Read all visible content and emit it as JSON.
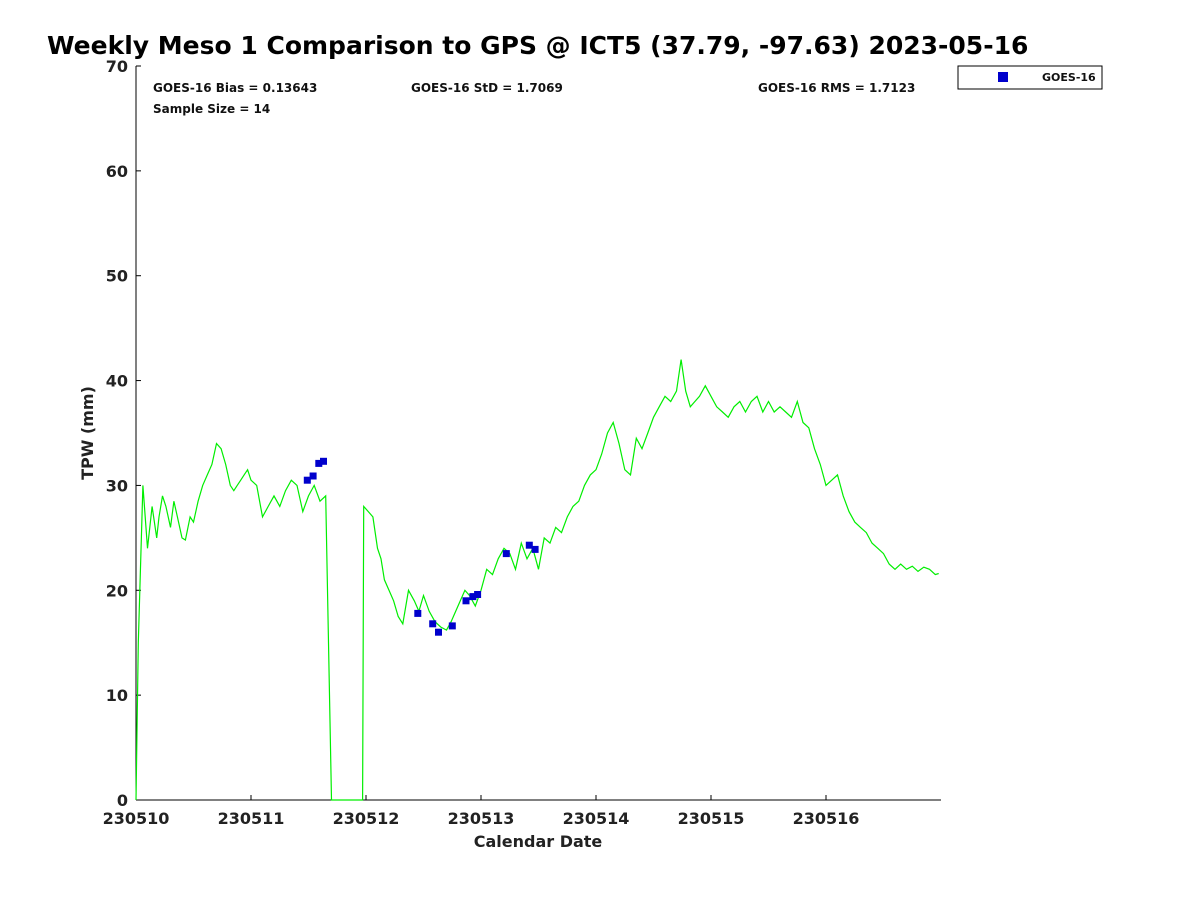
{
  "chart_data": {
    "type": "scatter",
    "title": "Weekly Meso 1 Comparison to GPS @ ICT5 (37.79, -97.63) 2023-05-16",
    "xlabel": "Calendar Date",
    "ylabel": "TPW (mm)",
    "xlim": [
      230510,
      230517
    ],
    "ylim": [
      0,
      70
    ],
    "x_ticks": [
      "230510",
      "230511",
      "230512",
      "230513",
      "230514",
      "230515",
      "230516"
    ],
    "y_ticks": [
      0,
      10,
      20,
      30,
      40,
      50,
      60,
      70
    ],
    "grid": false,
    "legend_position": "top-right-outside",
    "stats": {
      "bias": "GOES-16 Bias = 0.13643",
      "std": "GOES-16 StD = 1.7069",
      "rms": "GOES-16 RMS = 1.7123",
      "sample": "Sample Size = 14"
    },
    "series": [
      {
        "name": "GOES-16",
        "marker": "square",
        "color": "#0000cc",
        "x": [
          230511.49,
          230511.54,
          230511.59,
          230511.63,
          230512.45,
          230512.58,
          230512.63,
          230512.75,
          230512.87,
          230512.93,
          230512.97,
          230513.22,
          230513.42,
          230513.47
        ],
        "y": [
          30.5,
          30.9,
          32.1,
          32.3,
          17.8,
          16.8,
          16.0,
          16.6,
          19.0,
          19.4,
          19.6,
          23.5,
          24.3,
          23.9
        ]
      },
      {
        "color": "#00ee00",
        "marker": "line",
        "x": [
          230510.0,
          230510.02,
          230510.06,
          230510.1,
          230510.14,
          230510.18,
          230510.2,
          230510.23,
          230510.26,
          230510.3,
          230510.33,
          230510.36,
          230510.4,
          230510.43,
          230510.47,
          230510.5,
          230510.54,
          230510.58,
          230510.62,
          230510.66,
          230510.7,
          230510.74,
          230510.78,
          230510.82,
          230510.85,
          230510.88,
          230510.91,
          230510.94,
          230510.97,
          230511.0,
          230511.05,
          230511.1,
          230511.15,
          230511.2,
          230511.25,
          230511.3,
          230511.35,
          230511.4,
          230511.45,
          230511.5,
          230511.55,
          230511.6,
          230511.65,
          230511.7,
          230511.75,
          230511.8,
          230511.83,
          230511.86,
          230511.88,
          230511.93,
          230511.97,
          230511.98,
          230512.02,
          230512.06,
          230512.1,
          230512.13,
          230512.16,
          230512.2,
          230512.24,
          230512.28,
          230512.32,
          230512.37,
          230512.42,
          230512.46,
          230512.5,
          230512.55,
          230512.6,
          230512.65,
          230512.7,
          230512.74,
          230512.78,
          230512.82,
          230512.86,
          230512.9,
          230512.95,
          230513.0,
          230513.05,
          230513.1,
          230513.15,
          230513.2,
          230513.25,
          230513.3,
          230513.35,
          230513.4,
          230513.45,
          230513.5,
          230513.55,
          230513.6,
          230513.65,
          230513.7,
          230513.75,
          230513.8,
          230513.85,
          230513.9,
          230513.95,
          230514.0,
          230514.05,
          230514.1,
          230514.15,
          230514.2,
          230514.25,
          230514.3,
          230514.35,
          230514.4,
          230514.45,
          230514.5,
          230514.55,
          230514.6,
          230514.65,
          230514.7,
          230514.74,
          230514.78,
          230514.82,
          230514.86,
          230514.9,
          230514.95,
          230515.0,
          230515.05,
          230515.1,
          230515.15,
          230515.2,
          230515.25,
          230515.3,
          230515.35,
          230515.4,
          230515.45,
          230515.5,
          230515.55,
          230515.6,
          230515.65,
          230515.7,
          230515.75,
          230515.8,
          230515.85,
          230515.9,
          230515.95,
          230516.0,
          230516.05,
          230516.1,
          230516.15,
          230516.2,
          230516.25,
          230516.3,
          230516.35,
          230516.4,
          230516.45,
          230516.5,
          230516.55,
          230516.6,
          230516.65,
          230516.7,
          230516.75,
          230516.8,
          230516.85,
          230516.9,
          230516.95,
          230516.98
        ],
        "y": [
          0.0,
          15.0,
          30.0,
          24.0,
          28.0,
          25.0,
          27.0,
          29.0,
          28.0,
          26.0,
          28.5,
          27.0,
          25.0,
          24.8,
          27.0,
          26.5,
          28.5,
          30.0,
          31.0,
          32.0,
          34.0,
          33.5,
          32.0,
          30.0,
          29.5,
          30.0,
          30.5,
          31.0,
          31.5,
          30.5,
          30.0,
          27.0,
          28.0,
          29.0,
          28.0,
          29.5,
          30.5,
          30.0,
          27.5,
          29.0,
          30.0,
          28.5,
          29.0,
          0.0,
          0.0,
          0.0,
          0.0,
          0.0,
          0.0,
          0.0,
          0.0,
          28.0,
          27.5,
          27.0,
          24.0,
          23.0,
          21.0,
          20.0,
          19.0,
          17.5,
          16.8,
          20.0,
          19.0,
          18.0,
          19.5,
          18.0,
          17.0,
          16.5,
          16.2,
          17.0,
          18.0,
          19.0,
          20.0,
          19.5,
          18.5,
          20.0,
          22.0,
          21.5,
          23.0,
          24.0,
          23.5,
          22.0,
          24.5,
          23.0,
          24.0,
          22.0,
          25.0,
          24.5,
          26.0,
          25.5,
          27.0,
          28.0,
          28.5,
          30.0,
          31.0,
          31.5,
          33.0,
          35.0,
          36.0,
          34.0,
          31.5,
          31.0,
          34.5,
          33.5,
          35.0,
          36.5,
          37.5,
          38.5,
          38.0,
          39.0,
          42.0,
          39.0,
          37.5,
          38.0,
          38.5,
          39.5,
          38.5,
          37.5,
          37.0,
          36.5,
          37.5,
          38.0,
          37.0,
          38.0,
          38.5,
          37.0,
          38.0,
          37.0,
          37.5,
          37.0,
          36.5,
          38.0,
          36.0,
          35.5,
          33.5,
          32.0,
          30.0,
          30.5,
          31.0,
          29.0,
          27.5,
          26.5,
          26.0,
          25.5,
          24.5,
          24.0,
          23.5,
          22.5,
          22.0,
          22.5,
          22.0,
          22.3,
          21.8,
          22.2,
          22.0,
          21.5,
          21.6
        ]
      }
    ]
  }
}
